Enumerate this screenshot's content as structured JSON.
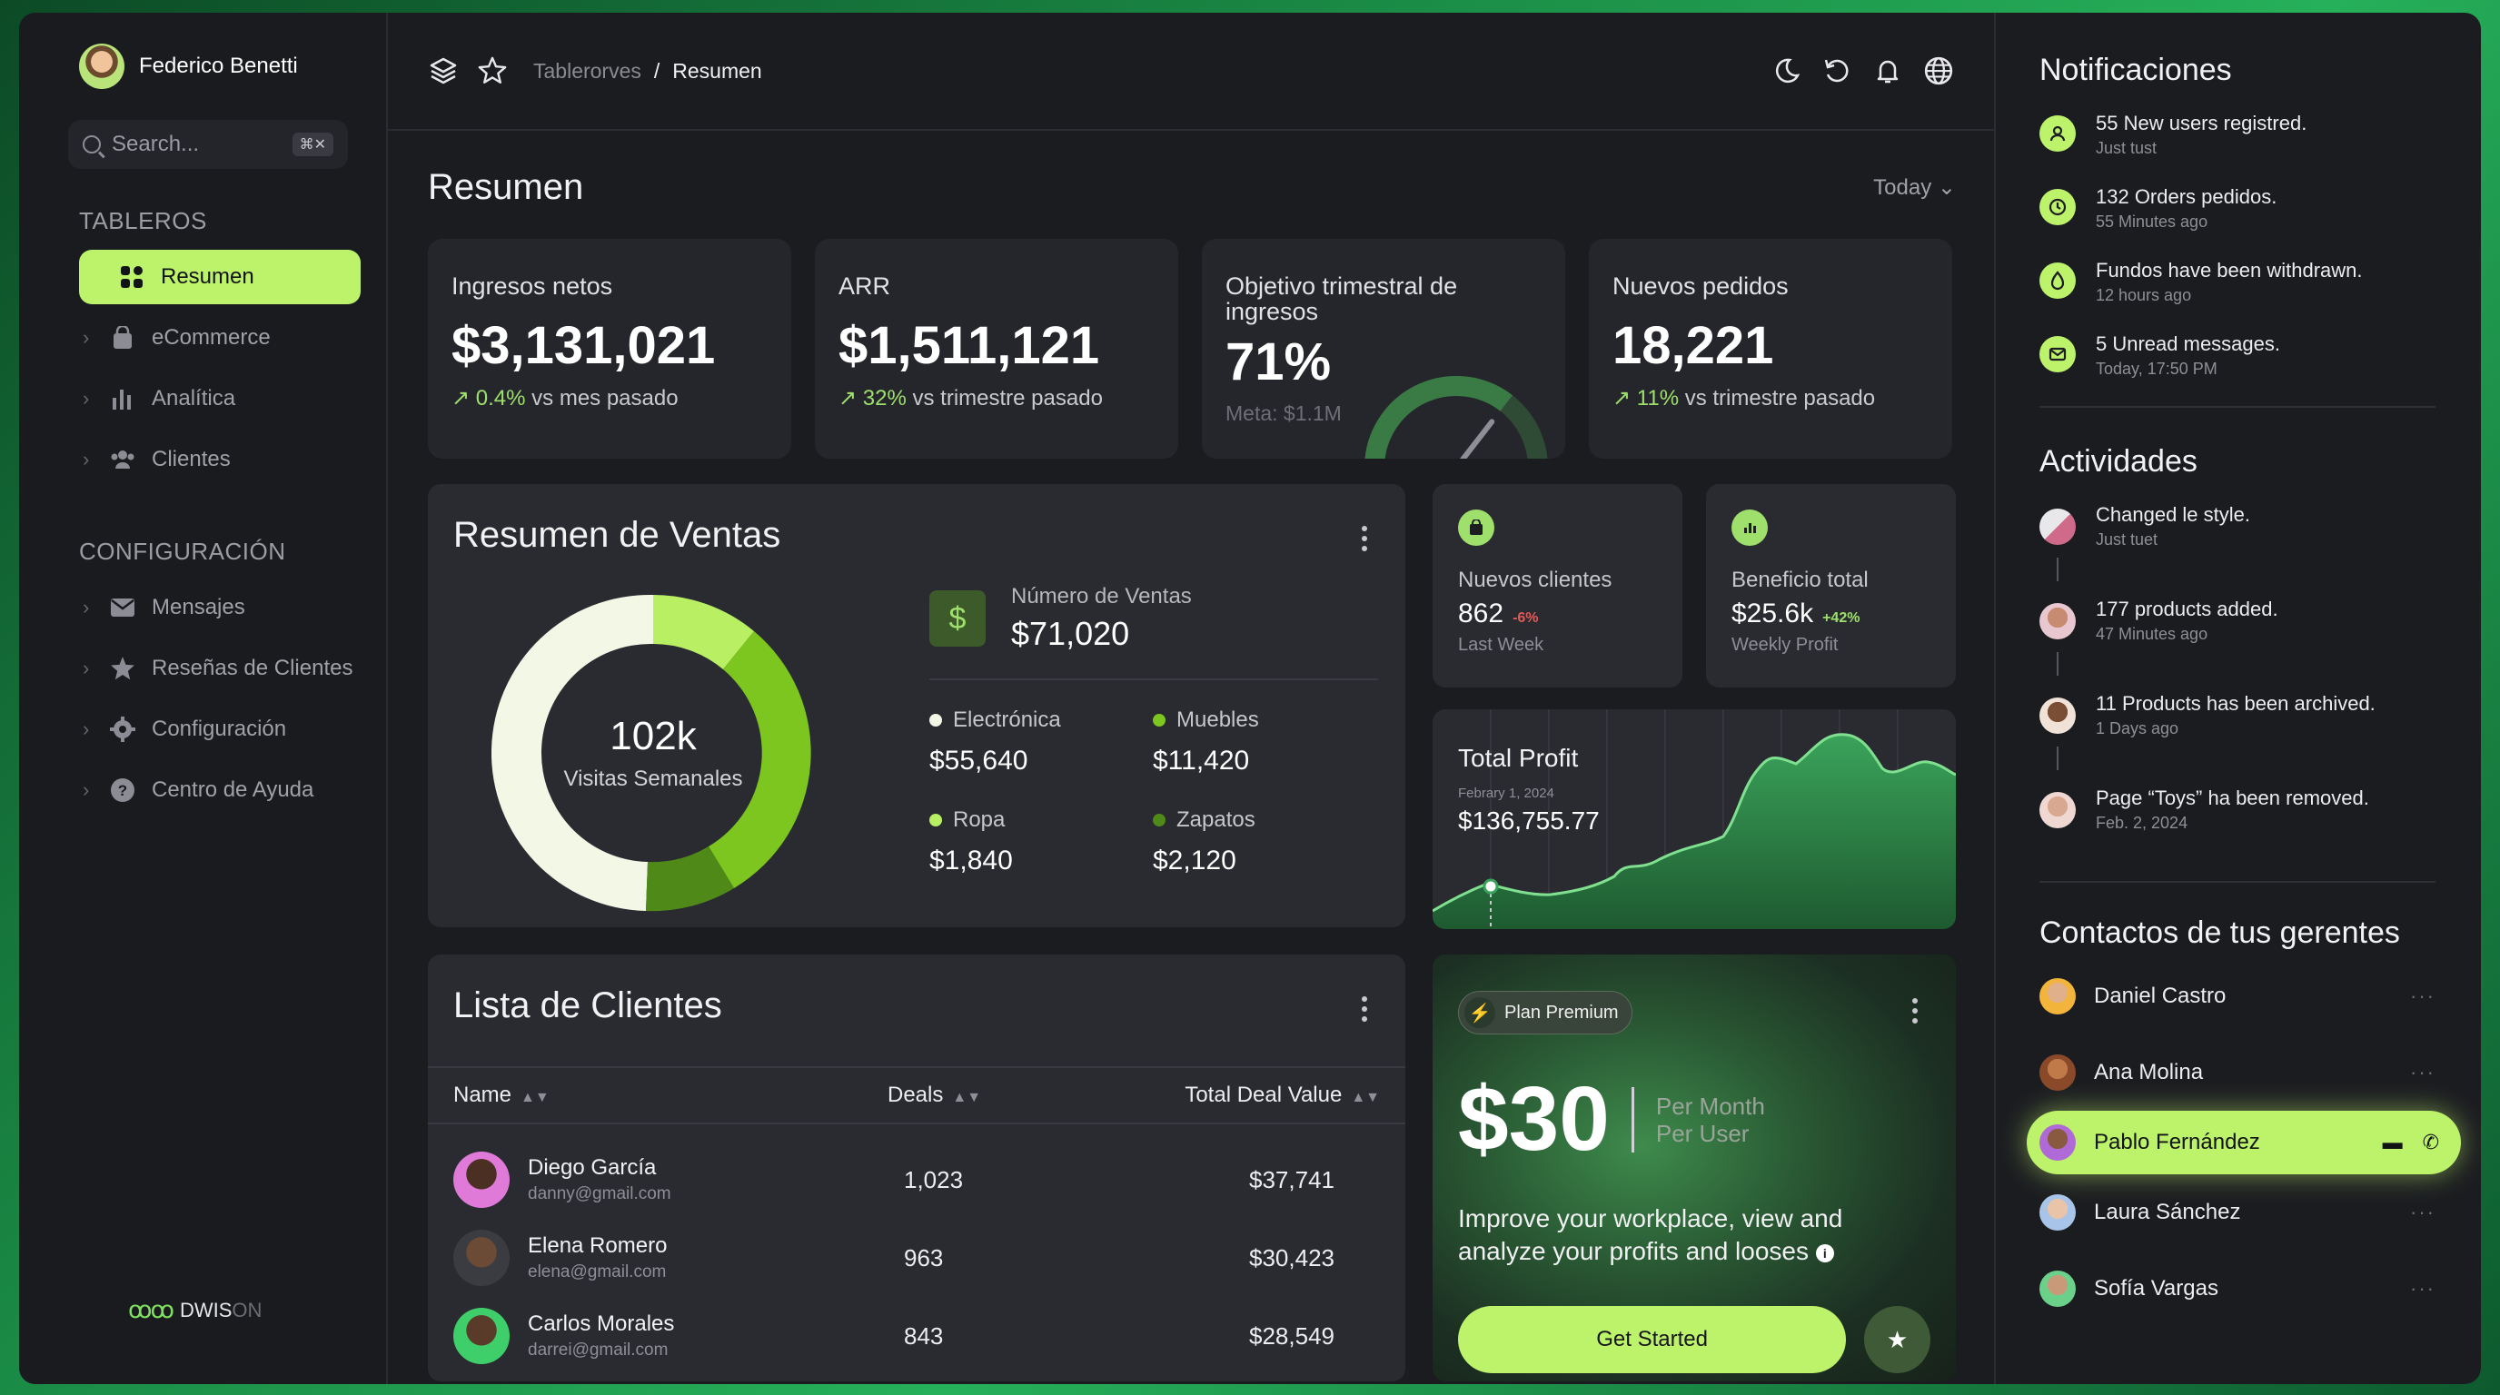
{
  "user": {
    "name": "Federico Benetti"
  },
  "search": {
    "placeholder": "Search...",
    "shortcut": "⌘✕"
  },
  "sidebar": {
    "section1": "TABLEROS",
    "section2": "CONFIGURACIÓN",
    "items1": [
      {
        "label": "Resumen",
        "icon": "grid-icon",
        "active": true
      },
      {
        "label": "eCommerce",
        "icon": "bag-icon"
      },
      {
        "label": "Analítica",
        "icon": "bar-chart-icon"
      },
      {
        "label": "Clientes",
        "icon": "users-icon"
      }
    ],
    "items2": [
      {
        "label": "Mensajes",
        "icon": "mail-icon"
      },
      {
        "label": "Reseñas de Clientes",
        "icon": "star-icon"
      },
      {
        "label": "Configuración",
        "icon": "gear-icon"
      },
      {
        "label": "Centro de Ayuda",
        "icon": "help-icon"
      }
    ],
    "logo_main": "DWIS",
    "logo_faded": "ON"
  },
  "breadcrumb": {
    "root": "Tablerorves",
    "sep": "/",
    "current": "Resumen"
  },
  "page": {
    "title": "Resumen",
    "range": "Today"
  },
  "kpis": [
    {
      "label": "Ingresos netos",
      "value": "$3,131,021",
      "delta": "0.4%",
      "delta_text": " vs mes pasado"
    },
    {
      "label": "ARR",
      "value": "$1,511,121",
      "delta": "32%",
      "delta_text": " vs trimestre pasado"
    },
    {
      "label": "Objetivo trimestral de ingresos",
      "value": "71%",
      "sub": "Meta: $1.1M",
      "gauge": 0.71
    },
    {
      "label": "Nuevos pedidos",
      "value": "18,221",
      "delta": "11%",
      "delta_text": " vs trimestre pasado"
    }
  ],
  "ventas": {
    "title": "Resumen de Ventas",
    "donut_value": "102k",
    "donut_label": "Visitas Semanales",
    "num_label": "Número de Ventas",
    "num_value": "$71,020",
    "currency_symbol": "$",
    "categories": [
      {
        "label": "Electrónica",
        "value": "$55,640",
        "color": "#f2f7e6"
      },
      {
        "label": "Muebles",
        "value": "$11,420",
        "color": "#7cc61f"
      },
      {
        "label": "Ropa",
        "value": "$1,840",
        "color": "#b9ef63"
      },
      {
        "label": "Zapatos",
        "value": "$2,120",
        "color": "#4f8a19"
      }
    ]
  },
  "mini": [
    {
      "label": "Nuevos clientes",
      "value": "862",
      "change": "-6%",
      "change_color": "#e05a5a",
      "sub": "Last Week"
    },
    {
      "label": "Beneficio total",
      "value": "$25.6k",
      "change": "+42%",
      "change_color": "#9ee06b",
      "sub": "Weekly Profit"
    }
  ],
  "profit": {
    "title": "Total Profit",
    "date": "Febrary 1, 2024",
    "value": "$136,755.77"
  },
  "clients": {
    "title": "Lista de Clientes",
    "headers": {
      "name": "Name",
      "deals": "Deals",
      "value": "Total Deal Value",
      "sort": "▲▼"
    },
    "rows": [
      {
        "name": "Diego García",
        "email": "danny@gmail.com",
        "deals": "1,023",
        "value": "$37,741"
      },
      {
        "name": "Elena Romero",
        "email": "elena@gmail.com",
        "deals": "963",
        "value": "$30,423"
      },
      {
        "name": "Carlos Morales",
        "email": "darrei@gmail.com",
        "deals": "843",
        "value": "$28,549"
      }
    ]
  },
  "premium": {
    "pill": "Plan Premium",
    "price": "$30",
    "per1": "Per Month",
    "per2": "Per User",
    "desc": "Improve your workplace, view and analyze your profits and looses",
    "cta": "Get Started"
  },
  "notifications": {
    "title": "Notificaciones",
    "items": [
      {
        "text": "55 New users registred.",
        "time": "Just tust",
        "icon": "user-icon"
      },
      {
        "text": "132 Orders pedidos.",
        "time": "55 Minutes ago",
        "icon": "clock-icon"
      },
      {
        "text": "Fundos have been withdrawn.",
        "time": "12 hours ago",
        "icon": "money-icon"
      },
      {
        "text": "5 Unread messages.",
        "time": "Today, 17:50 PM",
        "icon": "mail-icon"
      }
    ]
  },
  "activities": {
    "title": "Actividades",
    "items": [
      {
        "text": "Changed le style.",
        "time": "Just tuet"
      },
      {
        "text": "177 products added.",
        "time": "47 Minutes ago"
      },
      {
        "text": "11 Products has been archived.",
        "time": "1 Days ago"
      },
      {
        "text": "Page “Toys” ha been removed.",
        "time": "Feb. 2, 2024"
      }
    ]
  },
  "contacts": {
    "title": "Contactos de tus gerentes",
    "items": [
      {
        "name": "Daniel Castro"
      },
      {
        "name": "Ana Molina"
      },
      {
        "name": "Pablo Fernández",
        "highlight": true
      },
      {
        "name": "Laura Sánchez"
      },
      {
        "name": "Sofía Vargas"
      }
    ]
  },
  "colors": {
    "accent": "#bdf26b",
    "bg": "#1b1c20",
    "card": "#25262b"
  }
}
